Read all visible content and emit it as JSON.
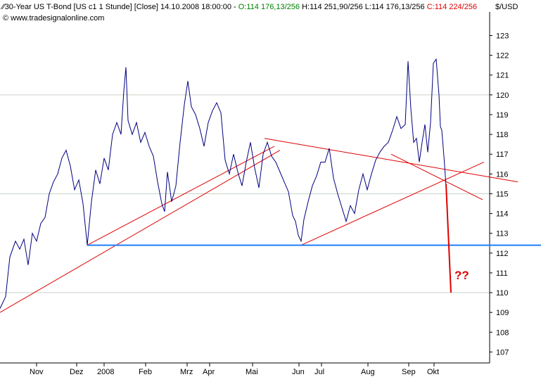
{
  "header": {
    "symbol_text": "30-Year US T-Bond [US c1  1 Stunde] [Close] 14.10.2008 18:00:00 -",
    "open_text": "O:114 176,13/256",
    "high_text": "H:114 251,90/256",
    "low_text": "L:114 176,13/256",
    "close_text": "C:114 224/256",
    "copyright": "© www.tradesignalonline.com",
    "unit": "$/USD",
    "colors": {
      "open": "#008000",
      "close": "#e00000",
      "text": "#000000"
    }
  },
  "annotation": "??",
  "chart_data": {
    "type": "line",
    "y_ticks": [
      107,
      108,
      109,
      110,
      111,
      112,
      113,
      114,
      115,
      116,
      117,
      118,
      119,
      120,
      121,
      122,
      123
    ],
    "ylim": [
      106.2,
      123.9
    ],
    "x_labels": [
      {
        "label": "Nov",
        "px": 52
      },
      {
        "label": "Dez",
        "px": 109
      },
      {
        "label": "2008",
        "px": 148
      },
      {
        "label": "Feb",
        "px": 207
      },
      {
        "label": "Mrz",
        "px": 266
      },
      {
        "label": "Apr",
        "px": 298
      },
      {
        "label": "Mai",
        "px": 359
      },
      {
        "label": "Jun",
        "px": 425
      },
      {
        "label": "Jul",
        "px": 457
      },
      {
        "label": "Aug",
        "px": 523
      },
      {
        "label": "Sep",
        "px": 581
      },
      {
        "label": "Okt",
        "px": 617
      }
    ],
    "price_series": [
      [
        0,
        109.2
      ],
      [
        8,
        109.8
      ],
      [
        14,
        111.8
      ],
      [
        22,
        112.6
      ],
      [
        28,
        112.2
      ],
      [
        34,
        112.7
      ],
      [
        40,
        111.4
      ],
      [
        46,
        113.0
      ],
      [
        52,
        112.6
      ],
      [
        58,
        113.5
      ],
      [
        64,
        113.8
      ],
      [
        70,
        115.0
      ],
      [
        76,
        115.6
      ],
      [
        82,
        116.0
      ],
      [
        88,
        116.8
      ],
      [
        94,
        117.2
      ],
      [
        100,
        116.4
      ],
      [
        106,
        115.2
      ],
      [
        112,
        115.7
      ],
      [
        118,
        114.5
      ],
      [
        124,
        112.4
      ],
      [
        130,
        114.6
      ],
      [
        136,
        116.2
      ],
      [
        142,
        115.5
      ],
      [
        148,
        116.8
      ],
      [
        154,
        116.2
      ],
      [
        160,
        118.0
      ],
      [
        166,
        118.6
      ],
      [
        172,
        118.0
      ],
      [
        176,
        120.2
      ],
      [
        179,
        121.4
      ],
      [
        182,
        118.7
      ],
      [
        188,
        118.0
      ],
      [
        194,
        118.6
      ],
      [
        200,
        117.6
      ],
      [
        206,
        118.1
      ],
      [
        212,
        117.4
      ],
      [
        218,
        116.9
      ],
      [
        224,
        115.6
      ],
      [
        230,
        114.5
      ],
      [
        234,
        114.1
      ],
      [
        238,
        116.1
      ],
      [
        244,
        114.6
      ],
      [
        250,
        115.4
      ],
      [
        256,
        117.6
      ],
      [
        262,
        119.5
      ],
      [
        267,
        120.7
      ],
      [
        272,
        119.4
      ],
      [
        278,
        119.0
      ],
      [
        284,
        118.3
      ],
      [
        290,
        117.4
      ],
      [
        296,
        118.6
      ],
      [
        302,
        119.2
      ],
      [
        308,
        119.6
      ],
      [
        314,
        119.1
      ],
      [
        320,
        116.7
      ],
      [
        326,
        116.0
      ],
      [
        332,
        117.0
      ],
      [
        338,
        116.1
      ],
      [
        344,
        115.4
      ],
      [
        350,
        116.6
      ],
      [
        356,
        117.6
      ],
      [
        362,
        116.3
      ],
      [
        368,
        115.3
      ],
      [
        374,
        117.0
      ],
      [
        380,
        117.6
      ],
      [
        386,
        116.9
      ],
      [
        392,
        116.6
      ],
      [
        398,
        116.1
      ],
      [
        404,
        115.6
      ],
      [
        410,
        115.1
      ],
      [
        416,
        113.9
      ],
      [
        420,
        113.6
      ],
      [
        424,
        112.9
      ],
      [
        428,
        112.6
      ],
      [
        432,
        113.7
      ],
      [
        438,
        114.6
      ],
      [
        444,
        115.4
      ],
      [
        450,
        115.9
      ],
      [
        456,
        116.6
      ],
      [
        462,
        116.6
      ],
      [
        468,
        117.3
      ],
      [
        474,
        115.8
      ],
      [
        480,
        115.0
      ],
      [
        486,
        114.3
      ],
      [
        492,
        113.6
      ],
      [
        498,
        114.4
      ],
      [
        504,
        114.0
      ],
      [
        510,
        115.2
      ],
      [
        516,
        116.0
      ],
      [
        522,
        115.2
      ],
      [
        528,
        116.0
      ],
      [
        534,
        116.7
      ],
      [
        540,
        117.1
      ],
      [
        546,
        117.4
      ],
      [
        552,
        117.6
      ],
      [
        558,
        118.2
      ],
      [
        564,
        118.9
      ],
      [
        570,
        118.3
      ],
      [
        576,
        118.5
      ],
      [
        580,
        121.7
      ],
      [
        584,
        119.3
      ],
      [
        588,
        117.6
      ],
      [
        592,
        117.8
      ],
      [
        596,
        116.6
      ],
      [
        600,
        117.6
      ],
      [
        604,
        118.5
      ],
      [
        608,
        117.1
      ],
      [
        612,
        118.6
      ],
      [
        616,
        121.6
      ],
      [
        620,
        121.8
      ],
      [
        624,
        120.0
      ],
      [
        626,
        118.4
      ],
      [
        628,
        118.2
      ],
      [
        631,
        116.9
      ],
      [
        634,
        115.4
      ]
    ],
    "projection": [
      [
        634,
        115.5
      ],
      [
        641,
        110.0
      ]
    ],
    "support_level": 112.4,
    "trendlines": [
      {
        "points": [
          [
            0,
            109.0
          ],
          [
            398,
            117.2
          ]
        ]
      },
      {
        "points": [
          [
            124,
            112.4
          ],
          [
            390,
            117.4
          ]
        ]
      },
      {
        "points": [
          [
            376,
            117.8
          ],
          [
            736,
            115.6
          ]
        ]
      },
      {
        "points": [
          [
            428,
            112.4
          ],
          [
            688,
            116.6
          ]
        ]
      },
      {
        "points": [
          [
            556,
            117.0
          ],
          [
            686,
            114.7
          ]
        ]
      }
    ]
  }
}
